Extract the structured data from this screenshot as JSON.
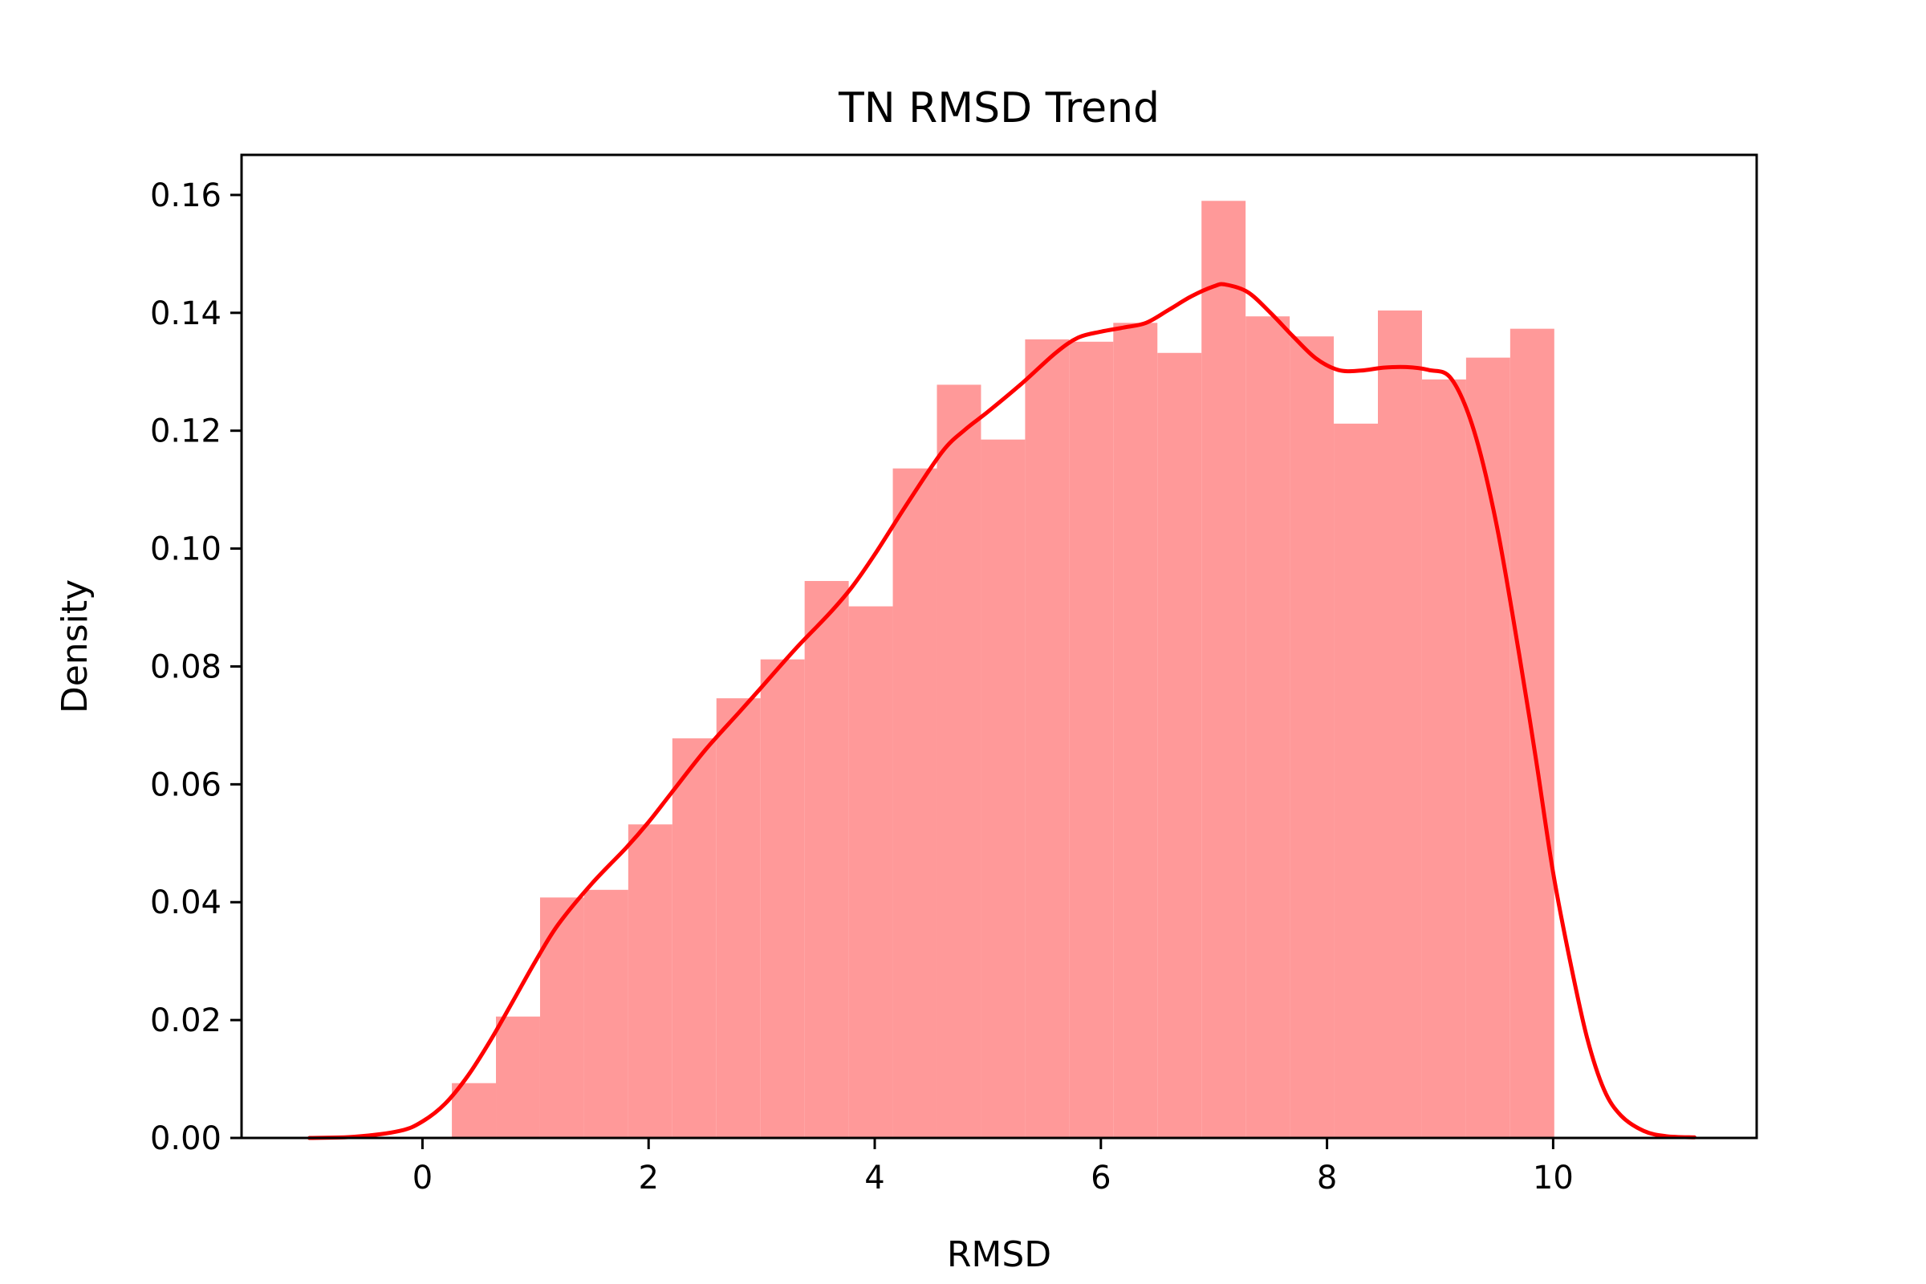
{
  "chart_data": {
    "type": "histogram",
    "title": "TN RMSD Trend",
    "xlabel": "RMSD",
    "ylabel": "Density",
    "xlim": [
      -1.6,
      11.8
    ],
    "ylim": [
      0,
      0.1668
    ],
    "xticks": [
      0,
      2,
      4,
      6,
      8,
      10
    ],
    "xtick_labels": [
      "0",
      "2",
      "4",
      "6",
      "8",
      "10"
    ],
    "yticks": [
      0.0,
      0.02,
      0.04,
      0.06,
      0.08,
      0.1,
      0.12,
      0.14,
      0.16
    ],
    "ytick_labels": [
      "0.00",
      "0.02",
      "0.04",
      "0.06",
      "0.08",
      "0.10",
      "0.12",
      "0.14",
      "0.16"
    ],
    "grid": false,
    "bar_color": "#ff9999",
    "line_color": "#ff0000",
    "bins": [
      {
        "x0": 0.26,
        "x1": 0.65,
        "value": 0.0093
      },
      {
        "x0": 0.65,
        "x1": 1.04,
        "value": 0.0206
      },
      {
        "x0": 1.04,
        "x1": 1.43,
        "value": 0.0408
      },
      {
        "x0": 1.43,
        "x1": 1.82,
        "value": 0.0421
      },
      {
        "x0": 1.82,
        "x1": 2.21,
        "value": 0.0532
      },
      {
        "x0": 2.21,
        "x1": 2.6,
        "value": 0.0678
      },
      {
        "x0": 2.6,
        "x1": 2.99,
        "value": 0.0746
      },
      {
        "x0": 2.99,
        "x1": 3.38,
        "value": 0.0812
      },
      {
        "x0": 3.38,
        "x1": 3.77,
        "value": 0.0945
      },
      {
        "x0": 3.77,
        "x1": 4.16,
        "value": 0.0902
      },
      {
        "x0": 4.16,
        "x1": 4.55,
        "value": 0.1136
      },
      {
        "x0": 4.55,
        "x1": 4.94,
        "value": 0.1278
      },
      {
        "x0": 4.94,
        "x1": 5.33,
        "value": 0.1185
      },
      {
        "x0": 5.33,
        "x1": 5.72,
        "value": 0.1355
      },
      {
        "x0": 5.72,
        "x1": 6.11,
        "value": 0.1351
      },
      {
        "x0": 6.11,
        "x1": 6.5,
        "value": 0.1383
      },
      {
        "x0": 6.5,
        "x1": 6.89,
        "value": 0.1332
      },
      {
        "x0": 6.89,
        "x1": 7.28,
        "value": 0.159
      },
      {
        "x0": 7.28,
        "x1": 7.67,
        "value": 0.1394
      },
      {
        "x0": 7.67,
        "x1": 8.06,
        "value": 0.136
      },
      {
        "x0": 8.06,
        "x1": 8.45,
        "value": 0.1212
      },
      {
        "x0": 8.45,
        "x1": 8.84,
        "value": 0.1404
      },
      {
        "x0": 8.84,
        "x1": 9.23,
        "value": 0.1287
      },
      {
        "x0": 9.23,
        "x1": 9.62,
        "value": 0.1324
      },
      {
        "x0": 9.62,
        "x1": 10.01,
        "value": 0.1373
      }
    ],
    "kde": {
      "x": [
        -1.0,
        -0.6,
        -0.2,
        0.0,
        0.2,
        0.4,
        0.6,
        0.8,
        1.0,
        1.2,
        1.5,
        1.8,
        2.0,
        2.2,
        2.5,
        2.8,
        3.0,
        3.3,
        3.6,
        3.8,
        4.0,
        4.3,
        4.6,
        4.8,
        5.0,
        5.3,
        5.6,
        5.8,
        6.0,
        6.2,
        6.4,
        6.6,
        6.8,
        7.0,
        7.1,
        7.3,
        7.5,
        7.7,
        7.9,
        8.1,
        8.3,
        8.5,
        8.7,
        8.9,
        9.1,
        9.3,
        9.5,
        9.7,
        9.85,
        10.0,
        10.15,
        10.3,
        10.45,
        10.6,
        10.8,
        11.0,
        11.25
      ],
      "y": [
        0.0,
        0.0002,
        0.0012,
        0.0028,
        0.0058,
        0.0105,
        0.0165,
        0.0232,
        0.03,
        0.0362,
        0.0432,
        0.0492,
        0.0536,
        0.0585,
        0.0658,
        0.0722,
        0.0765,
        0.083,
        0.089,
        0.0935,
        0.099,
        0.108,
        0.1165,
        0.1202,
        0.1232,
        0.128,
        0.1332,
        0.1358,
        0.1368,
        0.1375,
        0.1383,
        0.1405,
        0.1428,
        0.1445,
        0.1448,
        0.1435,
        0.14,
        0.136,
        0.1323,
        0.1303,
        0.1302,
        0.1307,
        0.1308,
        0.1303,
        0.1288,
        0.12,
        0.104,
        0.082,
        0.064,
        0.045,
        0.03,
        0.017,
        0.0082,
        0.0038,
        0.0012,
        0.0003,
        0.0001
      ]
    }
  }
}
